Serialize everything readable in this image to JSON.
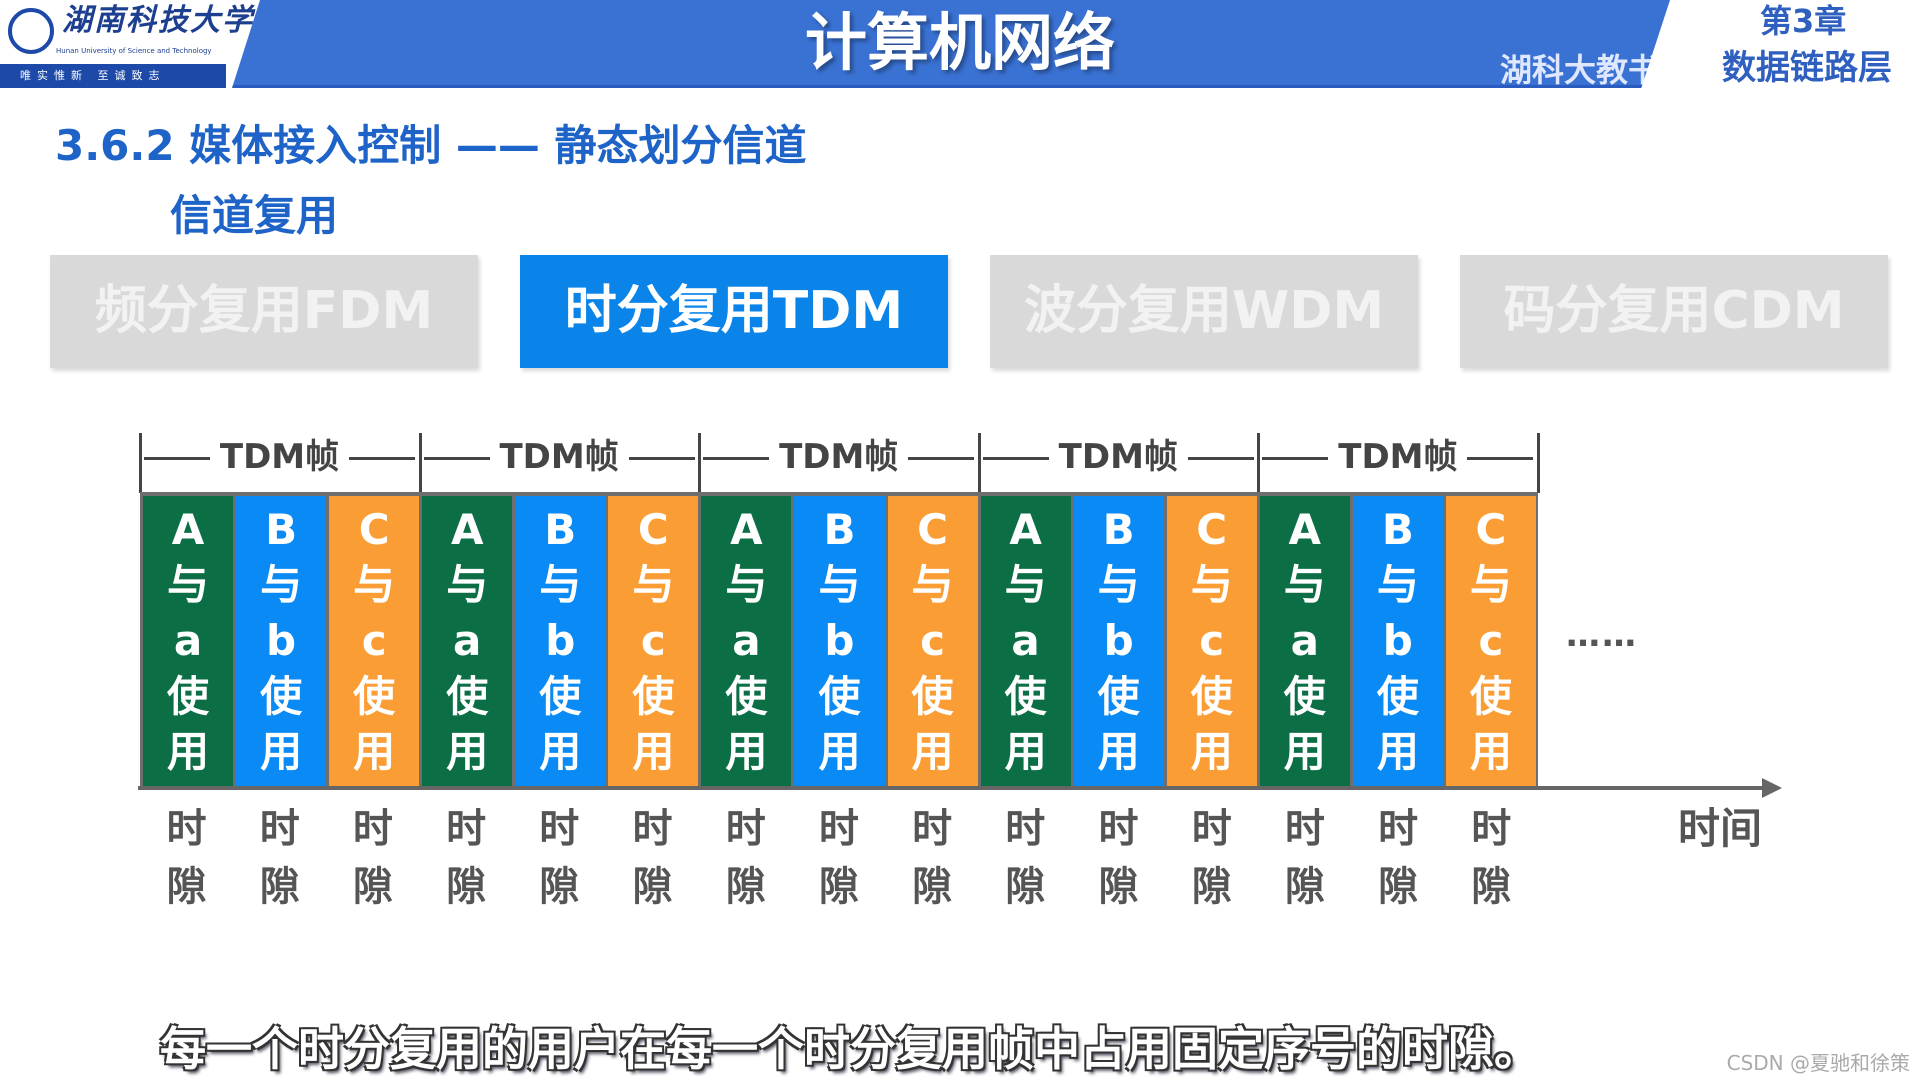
{
  "header": {
    "logo": {
      "name_cn": "湖南科技大学",
      "name_en": "Hunan University of Science and Technology",
      "motto": "唯实惟新 至诚致志"
    },
    "title": "计算机网络",
    "chapter": "第3章",
    "course_left": "湖科大教书匠",
    "course_right": "数据链路层",
    "color": "#3a72d4"
  },
  "section": {
    "title": "3.6.2 媒体接入控制 —— 静态划分信道",
    "subtitle": "信道复用"
  },
  "tabs": [
    {
      "label": "频分复用FDM",
      "active": false
    },
    {
      "label": "时分复用TDM",
      "active": true
    },
    {
      "label": "波分复用WDM",
      "active": false
    },
    {
      "label": "码分复用CDM",
      "active": false
    }
  ],
  "diagram": {
    "frame_label": "TDM帧",
    "frame_count": 5,
    "slots": [
      {
        "user": "A",
        "station": "a",
        "color": "#0b6e45"
      },
      {
        "user": "B",
        "station": "b",
        "color": "#0a8af5"
      },
      {
        "user": "C",
        "station": "c",
        "color": "#fb9d35"
      }
    ],
    "connector": "与",
    "use_text": [
      "使",
      "用"
    ],
    "slot_label": [
      "时",
      "隙"
    ],
    "ellipsis": "……",
    "axis_label": "时间"
  },
  "subtitle": "每一个时分复用的用户在每一个时分复用帧中占用固定序号的时隙。",
  "watermark": "CSDN @夏驰和徐策"
}
